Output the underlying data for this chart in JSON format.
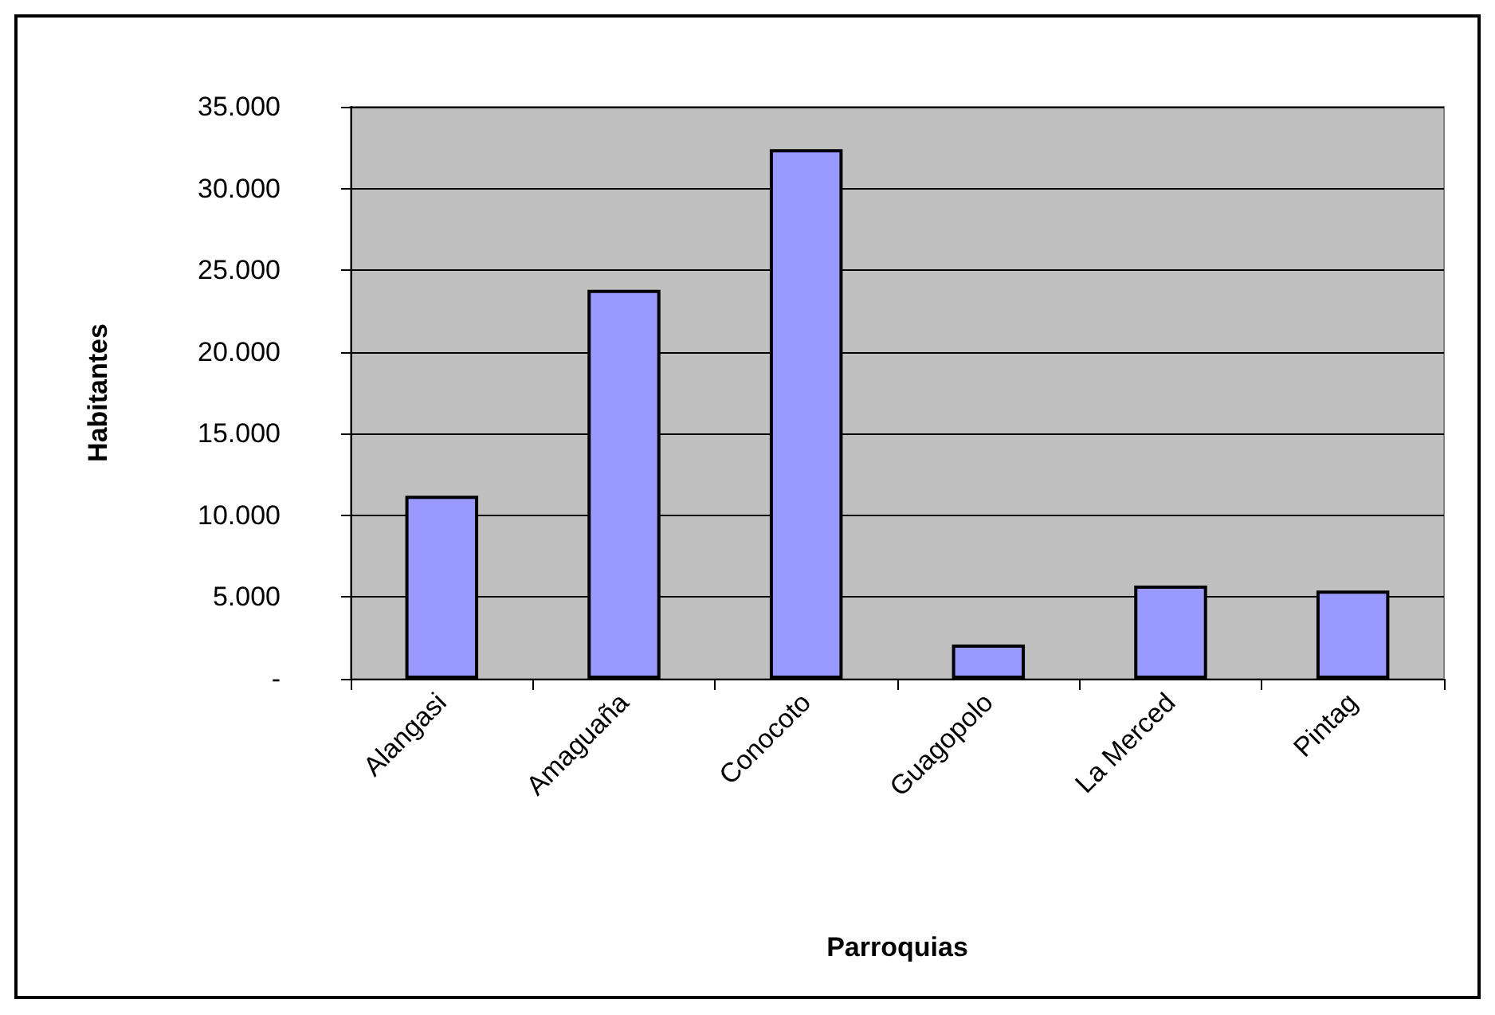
{
  "chart_data": {
    "type": "bar",
    "xlabel": "Parroquias",
    "ylabel": "Habitantes",
    "categories": [
      "Alangasi",
      "Amaguaña",
      "Conocoto",
      "Guagopolo",
      "La Merced",
      "Pintag"
    ],
    "values": [
      11200,
      23800,
      32400,
      2100,
      5700,
      5400
    ],
    "color": "#9999ff",
    "ylim": [
      0,
      35000
    ],
    "yticks": [
      {
        "value": 0,
        "label": "-"
      },
      {
        "value": 5000,
        "label": "5.000"
      },
      {
        "value": 10000,
        "label": "10.000"
      },
      {
        "value": 15000,
        "label": "15.000"
      },
      {
        "value": 20000,
        "label": "20.000"
      },
      {
        "value": 25000,
        "label": "25.000"
      },
      {
        "value": 30000,
        "label": "30.000"
      },
      {
        "value": 35000,
        "label": "35.000"
      }
    ],
    "grid": "y"
  }
}
